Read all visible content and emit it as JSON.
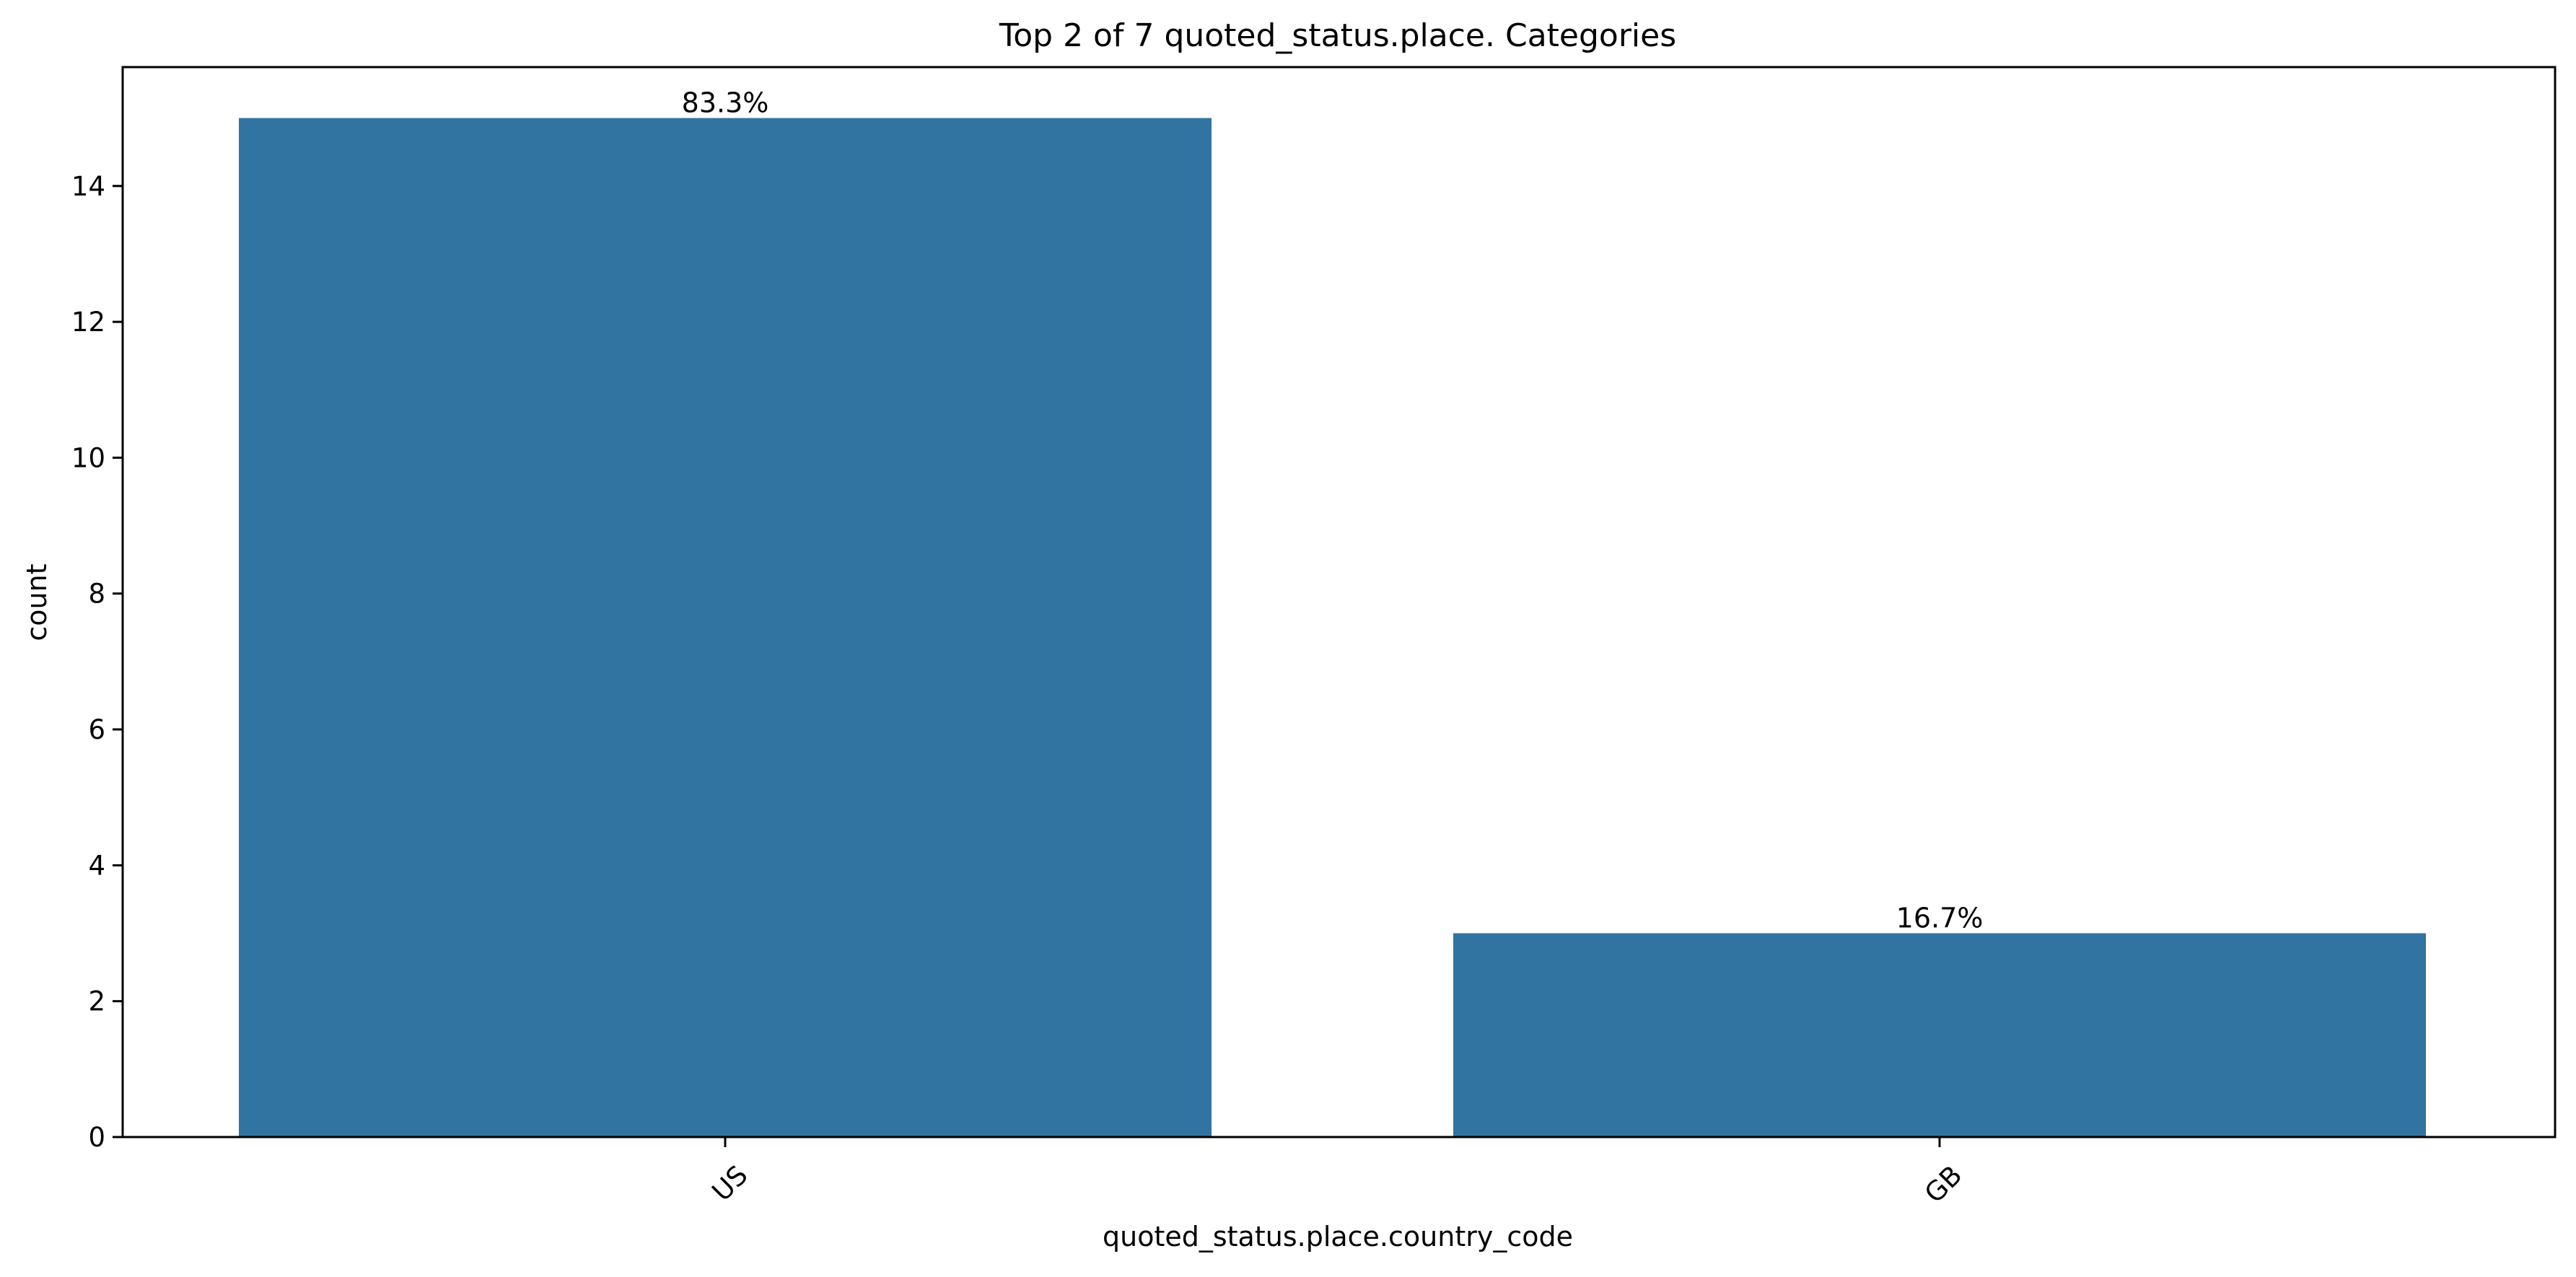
{
  "chart_data": {
    "type": "bar",
    "title": "Top 2 of 7 quoted_status.place. Categories",
    "xlabel": "quoted_status.place.country_code",
    "ylabel": "count",
    "categories": [
      "US",
      "GB"
    ],
    "values": [
      15,
      3
    ],
    "data_labels": [
      "83.3%",
      "16.7%"
    ],
    "ylim": [
      0,
      15.75
    ],
    "yticks": [
      0,
      2,
      4,
      6,
      8,
      10,
      12,
      14
    ],
    "grid": false,
    "bar_color": "#3274a1",
    "xtick_rotation_deg": 45
  }
}
